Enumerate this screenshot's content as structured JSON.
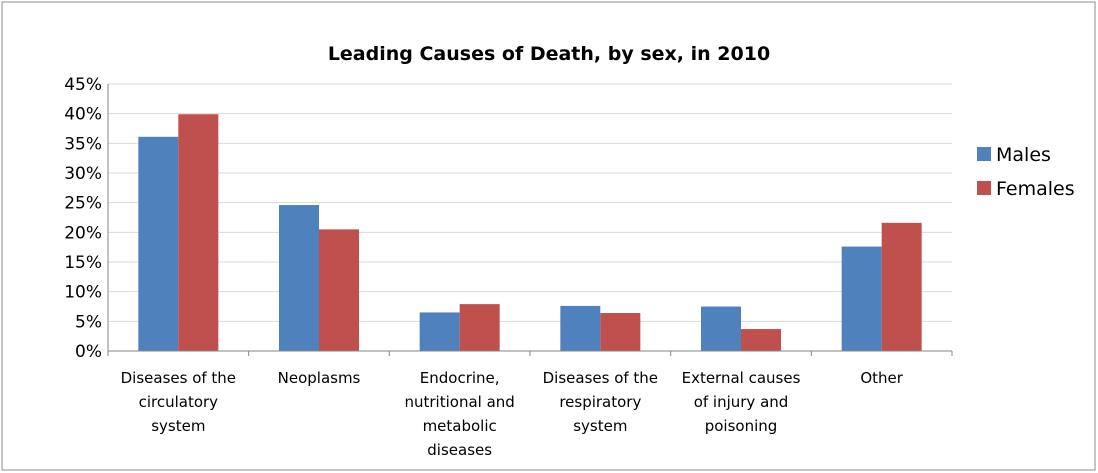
{
  "chart_data": {
    "type": "bar",
    "title": "Leading Causes of Death, by sex, in 2010",
    "xlabel": "",
    "ylabel": "",
    "categories": [
      "Diseases of the circulatory system",
      "Neoplasms",
      "Endocrine, nutritional and metabolic diseases",
      "Diseases of the respiratory system",
      "External causes of injury and poisoning",
      "Other"
    ],
    "category_lines": [
      [
        "Diseases of the",
        "circulatory",
        "system"
      ],
      [
        "Neoplasms"
      ],
      [
        "Endocrine,",
        "nutritional and",
        "metabolic",
        "diseases"
      ],
      [
        "Diseases of the",
        "respiratory",
        "system"
      ],
      [
        "External causes",
        "of injury and",
        "poisoning"
      ],
      [
        "Other"
      ]
    ],
    "series": [
      {
        "name": "Males",
        "color": "#4F81BD",
        "values": [
          36.1,
          24.6,
          6.5,
          7.6,
          7.5,
          17.6
        ]
      },
      {
        "name": "Females",
        "color": "#C0504D",
        "values": [
          39.9,
          20.5,
          7.9,
          6.4,
          3.7,
          21.6
        ]
      }
    ],
    "ylim": [
      0,
      45
    ],
    "yticks": [
      "0%",
      "5%",
      "10%",
      "15%",
      "20%",
      "25%",
      "30%",
      "35%",
      "40%",
      "45%"
    ],
    "ytick_values": [
      0,
      5,
      10,
      15,
      20,
      25,
      30,
      35,
      40,
      45
    ],
    "grid": true,
    "gridline_color": "#D9D9D9",
    "legend_position": "right"
  }
}
